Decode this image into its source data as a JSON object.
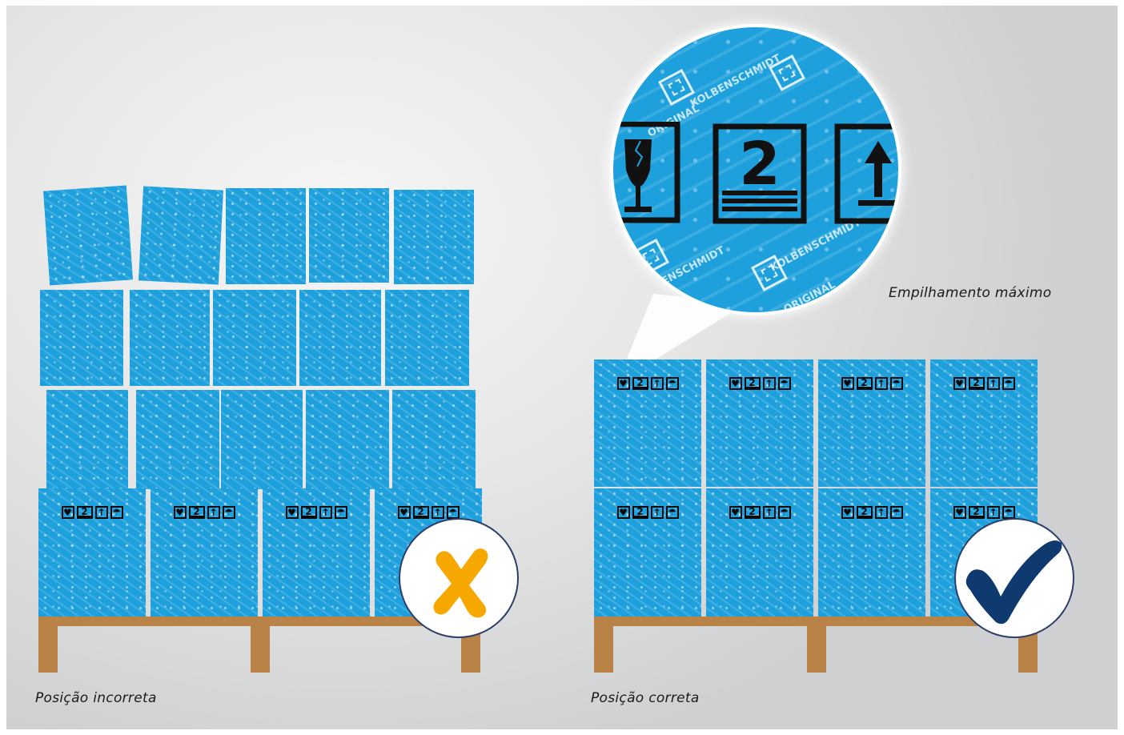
{
  "captions": {
    "incorrect": "Posição incorreta",
    "correct": "Posição correta",
    "zoom": "Empilhamento máximo"
  },
  "zoom": {
    "stack_number": "2",
    "pattern_text_1": "KOLBENSCHMIDT",
    "pattern_text_2": "ORIGINAL"
  },
  "colors": {
    "box": "#1ea0dc",
    "pallet": "#b98348",
    "wrong_mark": "#f6a800",
    "right_mark": "#0e3a70",
    "badge_border": "#2b3f69"
  },
  "icons": {
    "incorrect": "x-mark-icon",
    "correct": "check-mark-icon",
    "box_labels": [
      "fragile-glass-icon",
      "stack-limit-2-icon",
      "this-way-up-icon",
      "keep-dry-umbrella-icon"
    ]
  }
}
